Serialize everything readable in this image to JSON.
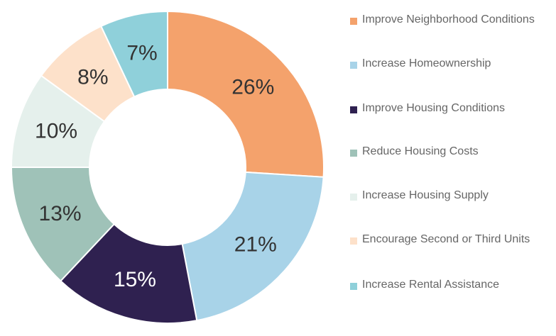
{
  "chart_data": {
    "type": "donut",
    "categories": [
      "Improve Neighborhood Conditions",
      "Increase Homeownership",
      "Improve Housing Conditions",
      "Reduce Housing Costs",
      "Increase Housing Supply",
      "Encourage Second or Third Units",
      "Increase Rental Assistance"
    ],
    "values": [
      26,
      21,
      15,
      13,
      10,
      8,
      7
    ],
    "value_labels": [
      "26%",
      "21%",
      "15%",
      "13%",
      "10%",
      "8%",
      "7%"
    ],
    "colors": [
      "#f4a26c",
      "#a8d3e8",
      "#2f2150",
      "#9fc2b8",
      "#e5f0ec",
      "#fde1ca",
      "#8fd0da"
    ],
    "legend": "right"
  }
}
